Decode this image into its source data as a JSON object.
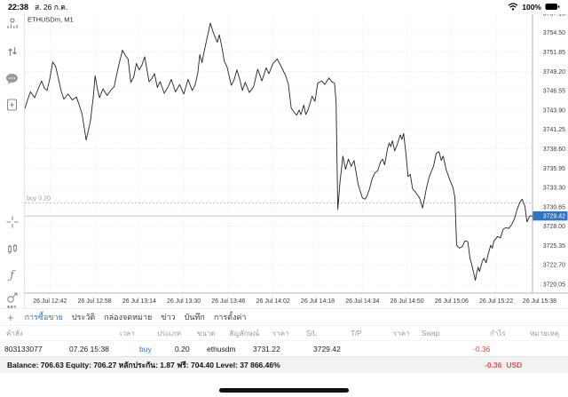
{
  "status_bar": {
    "time": "22:38",
    "date": "ส. 26 ก.ค.",
    "battery_percent": "100%",
    "icons": [
      "wifi-icon",
      "battery-icon"
    ]
  },
  "sidebar": {
    "icons": [
      "trader-icon",
      "trade-arrows-icon",
      "chat-icon",
      "new-order-icon",
      "crosshair-icon",
      "candles-icon",
      "indicator-f-icon",
      "objects-icon"
    ],
    "timeframe_label": "M1"
  },
  "chart_data": {
    "type": "line",
    "title": "ETHUSDm, M1",
    "xlabel": "",
    "ylabel": "",
    "symbol_label": "ETHUSDm, M1",
    "x_tick_labels": [
      "26 Jul 12:42",
      "26 Jul 12:58",
      "26 Jul 13:14",
      "26 Jul 13:30",
      "26 Jul 13:46",
      "26 Jul 14:02",
      "26 Jul 14:18",
      "26 Jul 14:34",
      "26 Jul 14:50",
      "26 Jul 15:06",
      "26 Jul 15:22",
      "26 Jul 15:38"
    ],
    "x_tick_minutes": [
      9,
      25,
      41,
      57,
      73,
      89,
      105,
      121,
      137,
      153,
      169,
      185
    ],
    "x_range_minutes": [
      0,
      182
    ],
    "y_ticks": [
      3757.15,
      3754.5,
      3751.85,
      3749.2,
      3746.55,
      3743.9,
      3741.25,
      3738.6,
      3735.95,
      3733.3,
      3730.65,
      3728.0,
      3725.35,
      3722.7,
      3720.05
    ],
    "ylim": [
      3718.85,
      3757.15
    ],
    "grid": true,
    "legend": null,
    "position_line": {
      "label": "buy 0.20",
      "price": 3731.22
    },
    "current_price": {
      "label": "3729.42",
      "price": 3729.42
    },
    "series": [
      [
        0,
        3744.1
      ],
      [
        1,
        3745.3
      ],
      [
        2,
        3746.4
      ],
      [
        3.5,
        3745.6
      ],
      [
        5,
        3747.0
      ],
      [
        6,
        3747.9
      ],
      [
        7,
        3746.9
      ],
      [
        8,
        3746.6
      ],
      [
        9,
        3748.3
      ],
      [
        10,
        3750.5
      ],
      [
        11,
        3749.9
      ],
      [
        12,
        3748.3
      ],
      [
        13,
        3746.5
      ],
      [
        14,
        3745.4
      ],
      [
        15.5,
        3746.1
      ],
      [
        17,
        3745.3
      ],
      [
        18.5,
        3745.7
      ],
      [
        19.5,
        3744.6
      ],
      [
        20.5,
        3743.4
      ],
      [
        22,
        3739.8
      ],
      [
        23.5,
        3742.4
      ],
      [
        24.5,
        3745.6
      ],
      [
        25.2,
        3748.6
      ],
      [
        26,
        3746.8
      ],
      [
        26.8,
        3745.6
      ],
      [
        28,
        3746.8
      ],
      [
        29.5,
        3745.9
      ],
      [
        31,
        3746.7
      ],
      [
        32,
        3747.1
      ],
      [
        33.5,
        3749.8
      ],
      [
        35,
        3752.1
      ],
      [
        36,
        3751.4
      ],
      [
        37,
        3750.9
      ],
      [
        38,
        3747.7
      ],
      [
        39,
        3748.4
      ],
      [
        40,
        3750.3
      ],
      [
        41,
        3749.4
      ],
      [
        42,
        3750.1
      ],
      [
        43,
        3751.2
      ],
      [
        44.5,
        3747.8
      ],
      [
        45.5,
        3748.2
      ],
      [
        46.5,
        3748.9
      ],
      [
        47.5,
        3747.0
      ],
      [
        48.5,
        3747.8
      ],
      [
        50,
        3746.2
      ],
      [
        51.5,
        3747.2
      ],
      [
        52.5,
        3748.1
      ],
      [
        54,
        3746.4
      ],
      [
        55.5,
        3747.4
      ],
      [
        57,
        3746.1
      ],
      [
        58.5,
        3748.1
      ],
      [
        60,
        3746.6
      ],
      [
        61,
        3747.3
      ],
      [
        62,
        3749.0
      ],
      [
        62.7,
        3751.5
      ],
      [
        63.5,
        3750.4
      ],
      [
        64.5,
        3752.3
      ],
      [
        66.5,
        3755.8
      ],
      [
        67.5,
        3754.6
      ],
      [
        68.2,
        3753.9
      ],
      [
        69,
        3753.2
      ],
      [
        69.7,
        3754.2
      ],
      [
        70.5,
        3752.8
      ],
      [
        71.5,
        3750.6
      ],
      [
        72.5,
        3749.8
      ],
      [
        74,
        3747.3
      ],
      [
        75,
        3748.0
      ],
      [
        76,
        3749.4
      ],
      [
        77,
        3748.2
      ],
      [
        78,
        3746.6
      ],
      [
        79,
        3747.7
      ],
      [
        80.5,
        3746.3
      ],
      [
        82,
        3747.1
      ],
      [
        83.5,
        3749.5
      ],
      [
        85,
        3747.9
      ],
      [
        86.5,
        3749.7
      ],
      [
        87.5,
        3748.9
      ],
      [
        89,
        3750.3
      ],
      [
        90.5,
        3750.9
      ],
      [
        92,
        3749.8
      ],
      [
        93.5,
        3748.6
      ],
      [
        94.5,
        3747.4
      ],
      [
        95.5,
        3744.2
      ],
      [
        96.5,
        3743.6
      ],
      [
        97.5,
        3743.2
      ],
      [
        98.3,
        3743.9
      ],
      [
        99,
        3743.3
      ],
      [
        100,
        3744.6
      ],
      [
        100.7,
        3743.3
      ],
      [
        101.5,
        3743.9
      ],
      [
        103,
        3745.8
      ],
      [
        104,
        3745.1
      ],
      [
        105,
        3747.6
      ],
      [
        106.5,
        3747.9
      ],
      [
        107.5,
        3747.4
      ],
      [
        109,
        3748.3
      ],
      [
        110,
        3747.8
      ],
      [
        111,
        3747.6
      ],
      [
        111.6,
        3745.0
      ],
      [
        112.2,
        3730.3
      ],
      [
        113,
        3734.0
      ],
      [
        114,
        3737.6
      ],
      [
        115,
        3735.8
      ],
      [
        116,
        3737.2
      ],
      [
        117,
        3736.2
      ],
      [
        118,
        3737.0
      ],
      [
        119.5,
        3733.7
      ],
      [
        121,
        3731.9
      ],
      [
        122,
        3731.7
      ],
      [
        122.6,
        3732.1
      ],
      [
        123.5,
        3733.0
      ],
      [
        124.5,
        3734.5
      ],
      [
        125.5,
        3735.3
      ],
      [
        126.5,
        3735.6
      ],
      [
        127.5,
        3736.8
      ],
      [
        128.3,
        3737.2
      ],
      [
        129,
        3736.4
      ],
      [
        130,
        3738.6
      ],
      [
        130.6,
        3739.4
      ],
      [
        131.2,
        3738.9
      ],
      [
        131.8,
        3739.7
      ],
      [
        132.6,
        3738.3
      ],
      [
        133.6,
        3739.3
      ],
      [
        134.6,
        3740.5
      ],
      [
        135.2,
        3739.9
      ],
      [
        135.8,
        3740.7
      ],
      [
        136.6,
        3738.0
      ],
      [
        137.4,
        3734.8
      ],
      [
        138.2,
        3735.1
      ],
      [
        139,
        3733.1
      ],
      [
        140,
        3732.7
      ],
      [
        141.5,
        3731.9
      ],
      [
        142.6,
        3730.5
      ],
      [
        144,
        3733.3
      ],
      [
        145,
        3734.8
      ],
      [
        146.5,
        3736.2
      ],
      [
        147.5,
        3738.0
      ],
      [
        148.5,
        3738.2
      ],
      [
        149.3,
        3737.0
      ],
      [
        150,
        3737.6
      ],
      [
        151,
        3735.8
      ],
      [
        152.5,
        3734.2
      ],
      [
        153.5,
        3733.3
      ],
      [
        154.2,
        3731.9
      ],
      [
        154.8,
        3725.4
      ],
      [
        155.8,
        3725.0
      ],
      [
        156.8,
        3725.2
      ],
      [
        157.8,
        3726.0
      ],
      [
        158.8,
        3725.9
      ],
      [
        159.6,
        3723.6
      ],
      [
        160.2,
        3722.8
      ],
      [
        161.5,
        3720.6
      ],
      [
        162,
        3721.6
      ],
      [
        162.5,
        3722.4
      ],
      [
        163,
        3721.8
      ],
      [
        164,
        3723.2
      ],
      [
        164.6,
        3723.6
      ],
      [
        165.4,
        3723.0
      ],
      [
        166,
        3724.0
      ],
      [
        167,
        3725.4
      ],
      [
        167.6,
        3725.0
      ],
      [
        168.2,
        3726.0
      ],
      [
        169.5,
        3726.6
      ],
      [
        170.5,
        3726.4
      ],
      [
        171.5,
        3727.6
      ],
      [
        172.5,
        3727.8
      ],
      [
        173.5,
        3727.7
      ],
      [
        174.5,
        3728.2
      ],
      [
        175.5,
        3729.0
      ],
      [
        176.5,
        3730.3
      ],
      [
        177.5,
        3731.3
      ],
      [
        178.3,
        3731.7
      ],
      [
        179.3,
        3730.7
      ],
      [
        180,
        3728.6
      ],
      [
        181,
        3729.4
      ],
      [
        182,
        3729.4
      ]
    ],
    "colors": {
      "line": "#222222",
      "grid": "#dedede",
      "axis": "#a0a0a0",
      "price_tag_bg": "#2e74c0",
      "price_tag_text": "#ffffff",
      "position_line": "#9f9f9f"
    }
  },
  "tabs": {
    "add_label": "+",
    "items": [
      {
        "id": "trade",
        "label": "การซื้อขาย",
        "selected": true
      },
      {
        "id": "history",
        "label": "ประวัติ",
        "selected": false
      },
      {
        "id": "mailbox",
        "label": "กล่องจดหมาย",
        "selected": false
      },
      {
        "id": "news",
        "label": "ข่าว",
        "selected": false
      },
      {
        "id": "journal",
        "label": "บันทึก",
        "selected": false
      },
      {
        "id": "settings",
        "label": "การตั้งค่า",
        "selected": false
      }
    ]
  },
  "positions_table": {
    "headers": [
      "คำสั่ง",
      "เวลา",
      "ประเภท",
      "ขนาด",
      "สัญลักษณ์",
      "ราคา",
      "S/L",
      "T/P",
      "ราคา",
      "Swap",
      "กำไร",
      "หมายเหตุ"
    ],
    "row": {
      "order": "803133077",
      "time": "07.26 15:38",
      "type": "buy",
      "volume": "0.20",
      "symbol": "ethusdm",
      "open_price": "3731.22",
      "sl": "",
      "tp": "",
      "price": "3729.42",
      "swap": "",
      "profit": "-0.36",
      "comment": ""
    }
  },
  "account_bar": {
    "summary": "Balance: 706.63 Equity: 706.27 หลักประกัน: 1.87 ฟรี: 704.40 Level: 37 866.46%",
    "profit": "-0.36",
    "currency": "USD"
  },
  "colors": {
    "accent_blue": "#2878c8",
    "negative_red": "#e0524e"
  }
}
